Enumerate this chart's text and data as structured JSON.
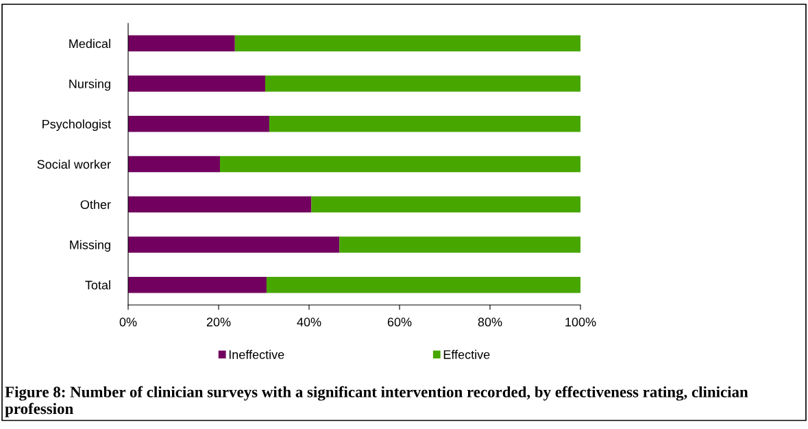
{
  "chart_data": {
    "type": "bar",
    "orientation": "horizontal",
    "stacked": true,
    "categories": [
      "Medical",
      "Nursing",
      "Psychologist",
      "Social worker",
      "Other",
      "Missing",
      "Total"
    ],
    "series": [
      {
        "name": "Ineffective",
        "color": "#72005f",
        "values": [
          23.6,
          30.3,
          31.2,
          20.3,
          40.5,
          46.7,
          30.6
        ]
      },
      {
        "name": "Effective",
        "color": "#48a600",
        "values": [
          76.4,
          69.7,
          68.8,
          79.7,
          59.5,
          53.3,
          69.4
        ]
      }
    ],
    "xlim": [
      0,
      100
    ],
    "xticks": [
      {
        "value": 0,
        "label": "0%"
      },
      {
        "value": 20,
        "label": "20%"
      },
      {
        "value": 40,
        "label": "40%"
      },
      {
        "value": 60,
        "label": "60%"
      },
      {
        "value": 80,
        "label": "80%"
      },
      {
        "value": 100,
        "label": "100%"
      }
    ],
    "grid": false,
    "legend": "bottom",
    "annotations": [
      "Figure 8: Number of clinician surveys with a significant intervention recorded, by effectiveness rating, clinician profession"
    ]
  }
}
